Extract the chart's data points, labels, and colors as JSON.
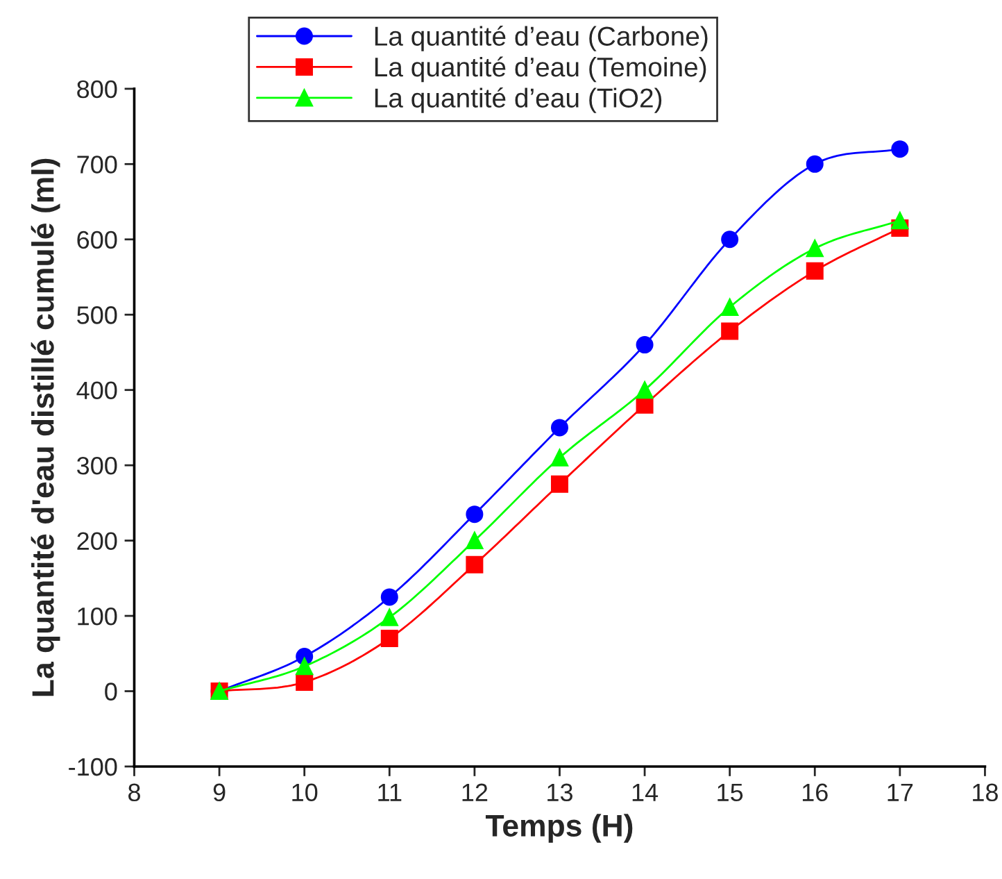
{
  "chart_data": {
    "type": "line",
    "xlabel": "Temps (H)",
    "ylabel": "La quantité d'eau distillé cumulé (ml)",
    "x": [
      9,
      10,
      11,
      12,
      13,
      14,
      15,
      16,
      17
    ],
    "series": [
      {
        "name": "La quantité d’eau (Carbone)",
        "color": "#0000ff",
        "marker": "circle",
        "values": [
          0,
          46,
          125,
          235,
          350,
          460,
          600,
          700,
          720
        ]
      },
      {
        "name": "La quantité d’eau (Temoine)",
        "color": "#ff0000",
        "marker": "square",
        "values": [
          0,
          12,
          70,
          168,
          275,
          380,
          478,
          558,
          615
        ]
      },
      {
        "name": "La quantité d’eau (TiO2)",
        "color": "#00ff00",
        "marker": "triangle",
        "values": [
          0,
          33,
          98,
          200,
          310,
          400,
          510,
          588,
          625
        ]
      }
    ],
    "xlim": [
      8,
      18
    ],
    "xticks": [
      8,
      9,
      10,
      11,
      12,
      13,
      14,
      15,
      16,
      17,
      18
    ],
    "ylim": [
      -100,
      800
    ],
    "yticks": [
      -100,
      0,
      100,
      200,
      300,
      400,
      500,
      600,
      700,
      800
    ],
    "grid": false,
    "legend": "top",
    "line_style": "solid"
  }
}
